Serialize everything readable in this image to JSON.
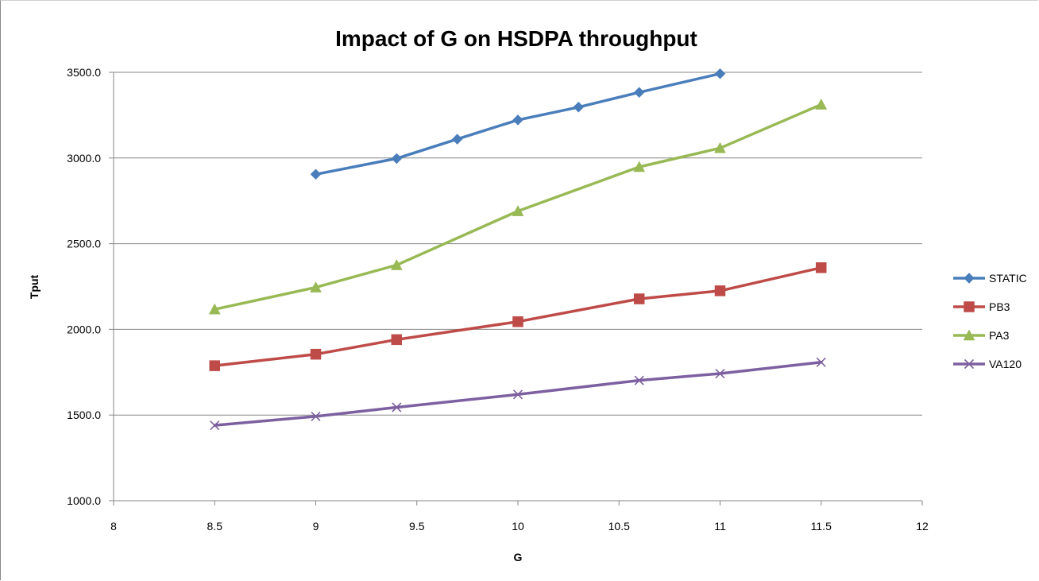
{
  "chart_data": {
    "type": "line",
    "title": "Impact of G on HSDPA throughput",
    "xlabel": "G",
    "ylabel": "Tput",
    "xlim": [
      8,
      12
    ],
    "ylim": [
      1000,
      3500
    ],
    "x_ticks": [
      "8",
      "8.5",
      "9",
      "9.5",
      "10",
      "10.5",
      "11",
      "11.5",
      "12"
    ],
    "y_ticks": [
      "1000.0",
      "1500.0",
      "2000.0",
      "2500.0",
      "3000.0",
      "3500.0"
    ],
    "grid": "horizontal",
    "legend_position": "right",
    "series": [
      {
        "name": "STATIC",
        "color": "#4a7ebb",
        "marker": "diamond",
        "points": [
          [
            9,
            2905
          ],
          [
            9.4,
            2997
          ],
          [
            9.7,
            3110
          ],
          [
            10,
            3222
          ],
          [
            10.3,
            3297
          ],
          [
            10.6,
            3383
          ],
          [
            11,
            3492
          ]
        ]
      },
      {
        "name": "PB3",
        "color": "#be4b48",
        "marker": "square",
        "points": [
          [
            8.5,
            1788
          ],
          [
            9,
            1855
          ],
          [
            9.4,
            1940
          ],
          [
            10,
            2045
          ],
          [
            10.6,
            2178
          ],
          [
            11,
            2225
          ],
          [
            11.5,
            2360
          ]
        ]
      },
      {
        "name": "PA3",
        "color": "#98b954",
        "marker": "triangle",
        "points": [
          [
            8.5,
            2117
          ],
          [
            9,
            2245
          ],
          [
            9.4,
            2375
          ],
          [
            10,
            2690
          ],
          [
            10.6,
            2948
          ],
          [
            11,
            3058
          ],
          [
            11.5,
            3312
          ]
        ]
      },
      {
        "name": "VA120",
        "color": "#7d60a0",
        "marker": "x",
        "points": [
          [
            8.5,
            1440
          ],
          [
            9,
            1492
          ],
          [
            9.4,
            1545
          ],
          [
            10,
            1620
          ],
          [
            10.6,
            1702
          ],
          [
            11,
            1742
          ],
          [
            11.5,
            1808
          ]
        ]
      }
    ]
  }
}
